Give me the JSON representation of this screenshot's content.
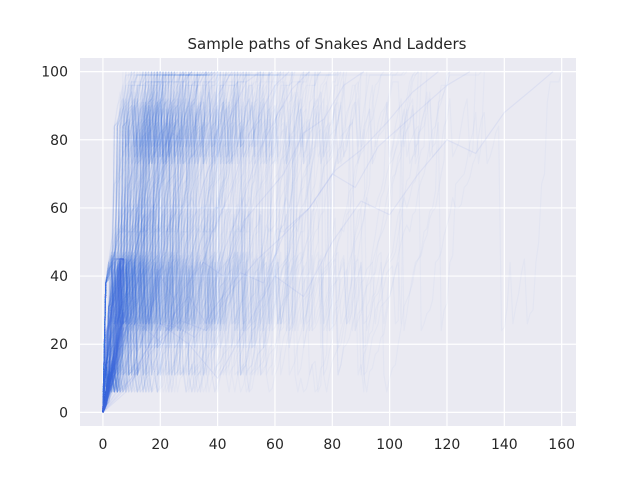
{
  "chart_data": {
    "type": "line",
    "title": "Sample paths of Snakes And Ladders",
    "xlabel": "",
    "ylabel": "",
    "xlim": [
      -8,
      165
    ],
    "ylim": [
      -4,
      104
    ],
    "xticks": [
      0,
      20,
      40,
      60,
      80,
      100,
      120,
      140,
      160
    ],
    "yticks": [
      0,
      20,
      40,
      60,
      80,
      100
    ],
    "grid": true,
    "legend": "none",
    "background_color": "#eaeaf2",
    "grid_color": "#ffffff",
    "series_color": "#4169e1",
    "series_alpha": 0.05,
    "series_description": "Many overlapping sample paths of board position (0 to 100) versus number of moves; most paths reach 100 within about 20–70 moves, a few extend beyond 150 moves.",
    "sample_paths": [
      {
        "x": [
          0,
          2,
          4,
          6,
          8,
          10,
          12,
          14,
          16,
          18,
          20,
          22
        ],
        "y": [
          0,
          8,
          22,
          38,
          26,
          45,
          60,
          72,
          84,
          90,
          96,
          100
        ]
      },
      {
        "x": [
          0,
          3,
          6,
          9,
          12,
          15,
          18,
          21,
          24,
          27
        ],
        "y": [
          0,
          12,
          27,
          20,
          38,
          55,
          68,
          80,
          93,
          100
        ]
      },
      {
        "x": [
          0,
          4,
          8,
          12,
          16,
          20,
          24,
          28,
          32,
          36,
          40
        ],
        "y": [
          0,
          10,
          25,
          18,
          26,
          44,
          59,
          75,
          84,
          96,
          100
        ]
      },
      {
        "x": [
          0,
          5,
          10,
          15,
          20,
          25,
          30,
          35,
          40,
          45,
          50,
          55
        ],
        "y": [
          0,
          14,
          26,
          25,
          40,
          33,
          51,
          67,
          79,
          88,
          97,
          100
        ]
      },
      {
        "x": [
          0,
          2,
          5,
          8,
          11,
          14,
          17
        ],
        "y": [
          0,
          24,
          42,
          58,
          77,
          93,
          100
        ]
      },
      {
        "x": [
          0,
          6,
          12,
          18,
          24,
          30,
          36,
          42,
          48,
          54,
          60,
          66,
          72
        ],
        "y": [
          0,
          8,
          26,
          12,
          28,
          34,
          26,
          47,
          60,
          76,
          86,
          95,
          100
        ]
      },
      {
        "x": [
          0,
          8,
          16,
          24,
          32,
          40,
          48,
          56,
          64,
          72,
          80,
          88,
          96,
          104,
          112,
          120,
          128
        ],
        "y": [
          0,
          6,
          18,
          26,
          22,
          32,
          41,
          38,
          54,
          60,
          70,
          66,
          78,
          84,
          90,
          96,
          100
        ]
      },
      {
        "x": [
          0,
          10,
          20,
          30,
          40,
          50,
          60,
          70,
          80,
          90,
          100,
          110,
          120,
          130,
          140,
          150,
          157
        ],
        "y": [
          0,
          10,
          26,
          20,
          10,
          25,
          40,
          34,
          50,
          62,
          58,
          70,
          80,
          76,
          88,
          95,
          100
        ]
      },
      {
        "x": [
          0,
          3,
          6,
          9,
          12,
          16,
          20,
          24,
          28,
          32,
          36
        ],
        "y": [
          0,
          18,
          31,
          26,
          45,
          57,
          66,
          82,
          80,
          94,
          100
        ]
      },
      {
        "x": [
          0,
          4,
          8,
          12,
          16,
          20,
          25,
          30,
          35,
          40,
          45
        ],
        "y": [
          0,
          16,
          26,
          40,
          26,
          44,
          63,
          74,
          80,
          93,
          100
        ]
      },
      {
        "x": [
          0,
          5,
          10,
          15,
          20,
          25,
          30,
          35,
          40,
          45,
          50,
          55,
          60,
          65
        ],
        "y": [
          0,
          6,
          10,
          18,
          26,
          25,
          38,
          48,
          56,
          66,
          80,
          88,
          96,
          100
        ]
      },
      {
        "x": [
          0,
          2,
          4,
          7,
          10,
          13,
          16,
          19,
          22,
          25,
          28,
          31
        ],
        "y": [
          0,
          10,
          28,
          26,
          42,
          38,
          56,
          71,
          79,
          88,
          97,
          100
        ]
      },
      {
        "x": [
          0,
          7,
          14,
          21,
          28,
          35,
          42,
          49,
          56,
          63,
          70,
          77,
          84,
          91
        ],
        "y": [
          0,
          12,
          25,
          20,
          36,
          44,
          40,
          56,
          63,
          70,
          82,
          86,
          96,
          100
        ]
      },
      {
        "x": [
          0,
          9,
          18,
          27,
          36,
          45,
          54,
          63,
          72,
          81,
          90,
          99,
          108,
          117
        ],
        "y": [
          0,
          8,
          19,
          27,
          24,
          36,
          45,
          52,
          60,
          71,
          77,
          85,
          94,
          100
        ]
      }
    ]
  }
}
